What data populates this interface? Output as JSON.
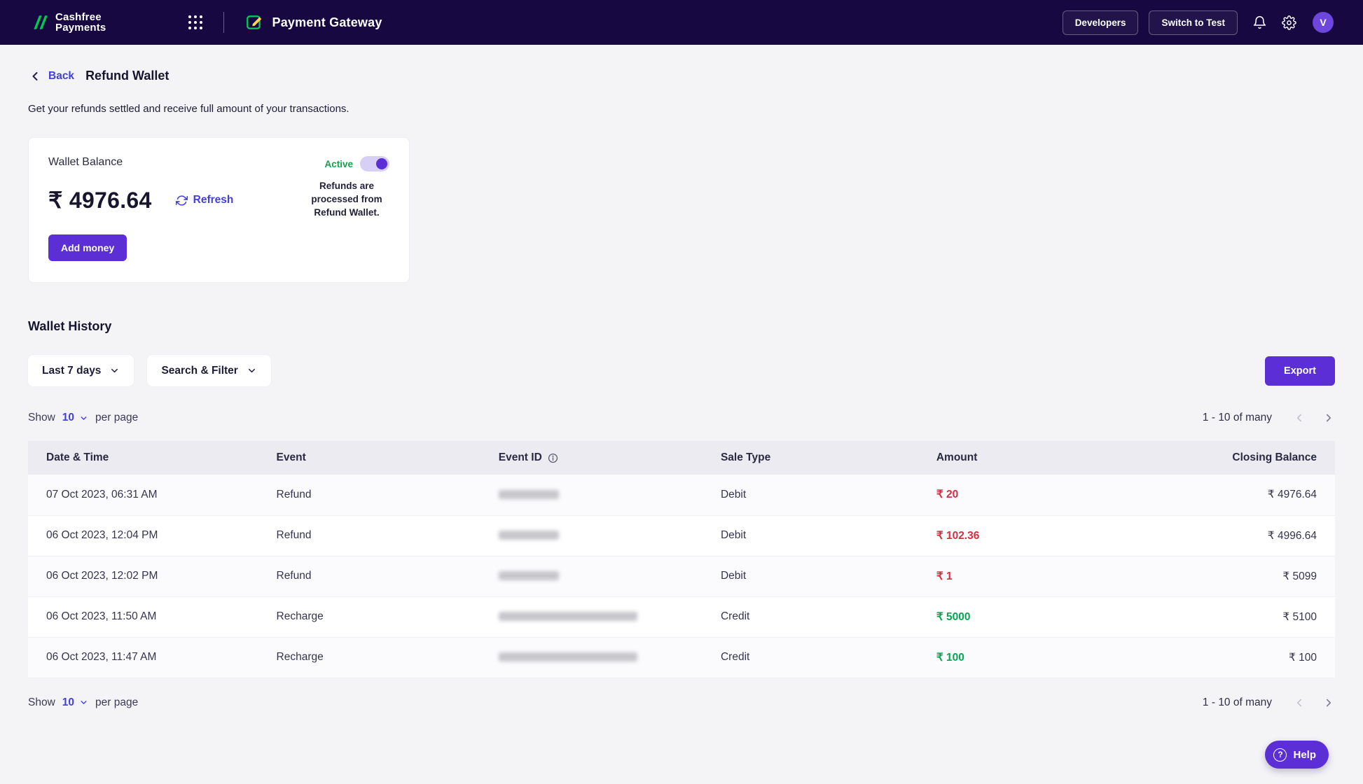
{
  "navbar": {
    "brand_line1": "Cashfree",
    "brand_line2": "Payments",
    "product": "Payment Gateway",
    "developers_button": "Developers",
    "switch_test_button": "Switch to Test",
    "avatar_initial": "V"
  },
  "page": {
    "back_label": "Back",
    "title": "Refund Wallet",
    "subtitle": "Get your refunds settled and receive full amount of your transactions."
  },
  "wallet_card": {
    "label": "Wallet Balance",
    "status": "Active",
    "balance": "₹ 4976.64",
    "refresh_label": "Refresh",
    "note": "Refunds are processed from Refund Wallet.",
    "add_money_label": "Add money"
  },
  "history": {
    "title": "Wallet History",
    "date_filter": "Last 7 days",
    "search_filter": "Search & Filter",
    "export_label": "Export",
    "show_label": "Show",
    "per_page_value": "10",
    "per_page_label": "per page",
    "range_label": "1 - 10 of many"
  },
  "table": {
    "columns": [
      "Date & Time",
      "Event",
      "Event ID",
      "Sale Type",
      "Amount",
      "Closing Balance"
    ],
    "rows": [
      {
        "datetime": "07 Oct 2023, 06:31 AM",
        "event": "Refund",
        "event_id_masked": "short",
        "sale_type": "Debit",
        "amount": "₹ 20",
        "direction": "debit",
        "closing_balance": "₹ 4976.64"
      },
      {
        "datetime": "06 Oct 2023, 12:04 PM",
        "event": "Refund",
        "event_id_masked": "short",
        "sale_type": "Debit",
        "amount": "₹ 102.36",
        "direction": "debit",
        "closing_balance": "₹ 4996.64"
      },
      {
        "datetime": "06 Oct 2023, 12:02 PM",
        "event": "Refund",
        "event_id_masked": "short",
        "sale_type": "Debit",
        "amount": "₹ 1",
        "direction": "debit",
        "closing_balance": "₹ 5099"
      },
      {
        "datetime": "06 Oct 2023, 11:50 AM",
        "event": "Recharge",
        "event_id_masked": "long",
        "sale_type": "Credit",
        "amount": "₹ 5000",
        "direction": "credit",
        "closing_balance": "₹ 5100"
      },
      {
        "datetime": "06 Oct 2023, 11:47 AM",
        "event": "Recharge",
        "event_id_masked": "long",
        "sale_type": "Credit",
        "amount": "₹ 100",
        "direction": "credit",
        "closing_balance": "₹ 100"
      }
    ]
  },
  "help": {
    "label": "Help"
  },
  "colors": {
    "navbar_bg": "#170842",
    "accent_purple": "#5c2ed6",
    "link_blue": "#4340d9",
    "active_green": "#12a247",
    "credit_green": "#09a552",
    "debit_red": "#d32f42",
    "page_bg": "#f4f4f7"
  }
}
